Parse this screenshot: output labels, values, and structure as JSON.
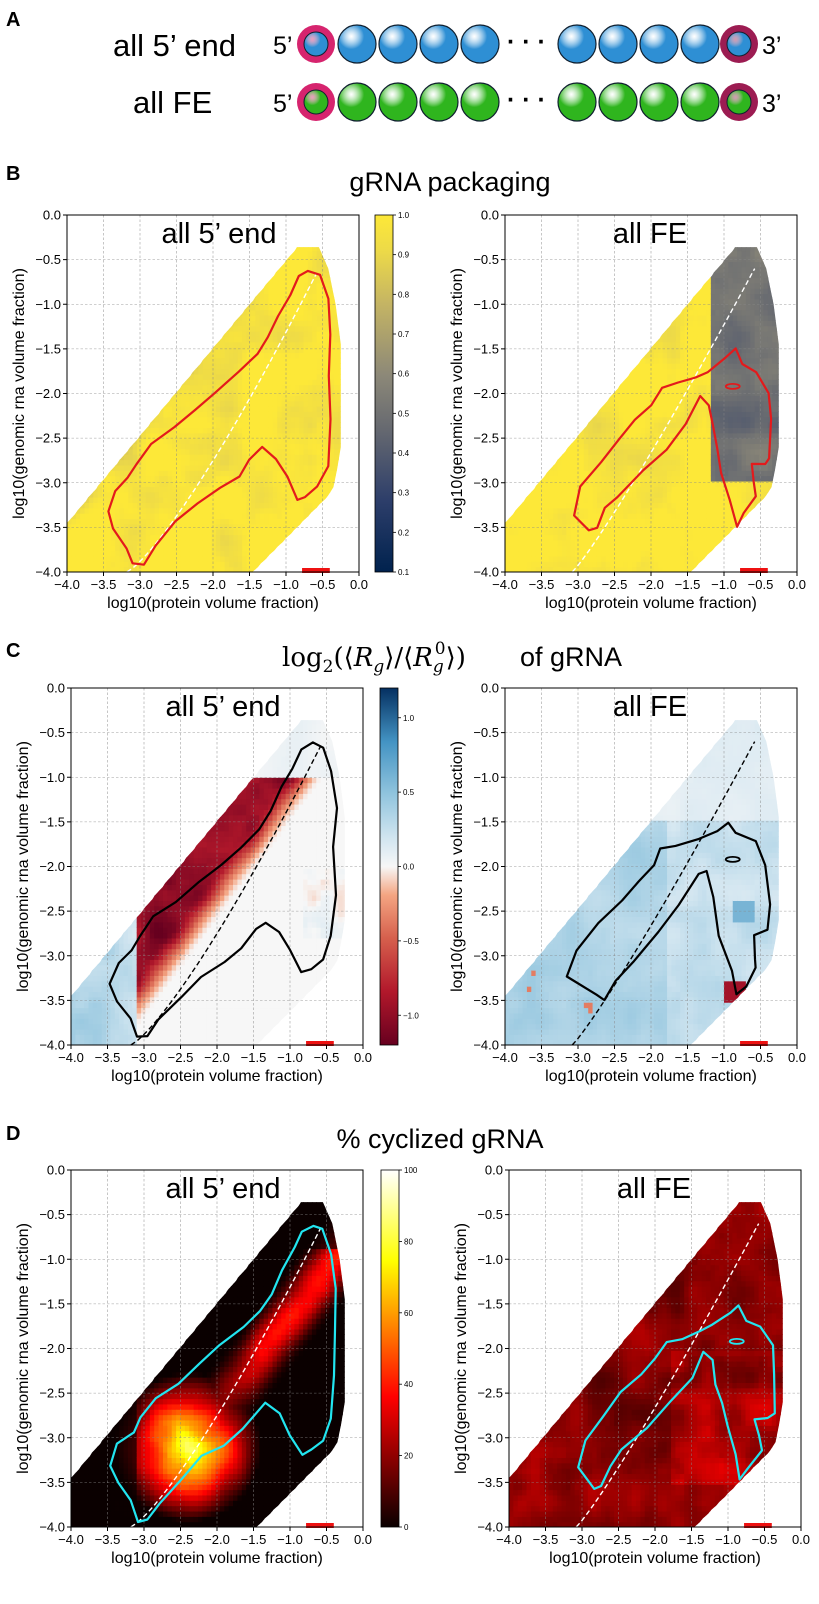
{
  "panel_a": {
    "letter": "A",
    "rows": [
      {
        "label": "all 5’ end",
        "left_end": "5’",
        "right_end": "3’",
        "bead_color": "#2e8fd4",
        "ring_left": "#d6246e",
        "ring_right": "#9c1c52",
        "ellipsis": "· · ·"
      },
      {
        "label": "all FE",
        "left_end": "5’",
        "right_end": "3’",
        "bead_color": "#2fb51e",
        "ring_left": "#d6246e",
        "ring_right": "#9c1c52",
        "ellipsis": "· · ·"
      }
    ]
  },
  "chart_data": [
    {
      "panel": "B",
      "type": "heatmap",
      "row_title": "gRNA packaging",
      "xlabel": "log10(protein volume fraction)",
      "ylabel": "log10(genomic rna volume fraction)",
      "xlim": [
        -4.0,
        0.0
      ],
      "ylim": [
        -4.0,
        0.0
      ],
      "xticks": [
        "−4.0",
        "−3.5",
        "−3.0",
        "−2.5",
        "−2.0",
        "−1.5",
        "−1.0",
        "−0.5",
        "0.0"
      ],
      "yticks": [
        "−4.0",
        "−3.5",
        "−3.0",
        "−2.5",
        "−2.0",
        "−1.5",
        "−1.0",
        "−0.5",
        "0.0"
      ],
      "grid": true,
      "colormap": "cividis",
      "colorbar": {
        "min": 0.1,
        "max": 1.0,
        "ticks": [
          "0.1",
          "0.2",
          "0.3",
          "0.4",
          "0.5",
          "0.6",
          "0.7",
          "0.8",
          "0.9",
          "1.0"
        ]
      },
      "contour_color": "#e31a1c",
      "dashed_color": "#ffffff",
      "marker_color": "#ee1111",
      "subplots": [
        {
          "title": "all 5’ end",
          "mode": "fiveB"
        },
        {
          "title": "all FE",
          "mode": "feB"
        }
      ]
    },
    {
      "panel": "C",
      "type": "heatmap",
      "row_title": "of gRNA",
      "xlabel": "log10(protein volume fraction)",
      "ylabel": "log10(genomic rna volume fraction)",
      "xlim": [
        -4.0,
        0.0
      ],
      "ylim": [
        -4.0,
        0.0
      ],
      "xticks": [
        "−4.0",
        "−3.5",
        "−3.0",
        "−2.5",
        "−2.0",
        "−1.5",
        "−1.0",
        "−0.5",
        "0.0"
      ],
      "yticks": [
        "−4.0",
        "−3.5",
        "−3.0",
        "−2.5",
        "−2.0",
        "−1.5",
        "−1.0",
        "−0.5",
        "0.0"
      ],
      "grid": true,
      "colormap": "RdBu",
      "colorbar": {
        "min": -1.2,
        "max": 1.2,
        "ticks": [
          "−1.0",
          "−0.5",
          "0.0",
          "0.5",
          "1.0"
        ]
      },
      "contour_color": "#000000",
      "dashed_color": "#000000",
      "marker_color": "#ee1111",
      "subplots": [
        {
          "title": "all 5’ end",
          "mode": "fiveC"
        },
        {
          "title": "all FE",
          "mode": "feC"
        }
      ]
    },
    {
      "panel": "D",
      "type": "heatmap",
      "row_title": "% cyclized gRNA",
      "xlabel": "log10(protein volume fraction)",
      "ylabel": "log10(genomic rna volume fraction)",
      "xlim": [
        -4.0,
        0.0
      ],
      "ylim": [
        -4.0,
        0.0
      ],
      "xticks": [
        "−4.0",
        "−3.5",
        "−3.0",
        "−2.5",
        "−2.0",
        "−1.5",
        "−1.0",
        "−0.5",
        "0.0"
      ],
      "yticks": [
        "−4.0",
        "−3.5",
        "−3.0",
        "−2.5",
        "−2.0",
        "−1.5",
        "−1.0",
        "−0.5",
        "0.0"
      ],
      "grid": true,
      "colormap": "hot",
      "colorbar": {
        "min": 0,
        "max": 100,
        "ticks": [
          "0",
          "20",
          "40",
          "60",
          "80",
          "100"
        ]
      },
      "contour_color": "#22e5f0",
      "dashed_color": "#ffffff",
      "marker_color": "#ee1111",
      "subplots": [
        {
          "title": "all 5’ end",
          "mode": "fiveD"
        },
        {
          "title": "all FE",
          "mode": "feD"
        }
      ]
    }
  ]
}
